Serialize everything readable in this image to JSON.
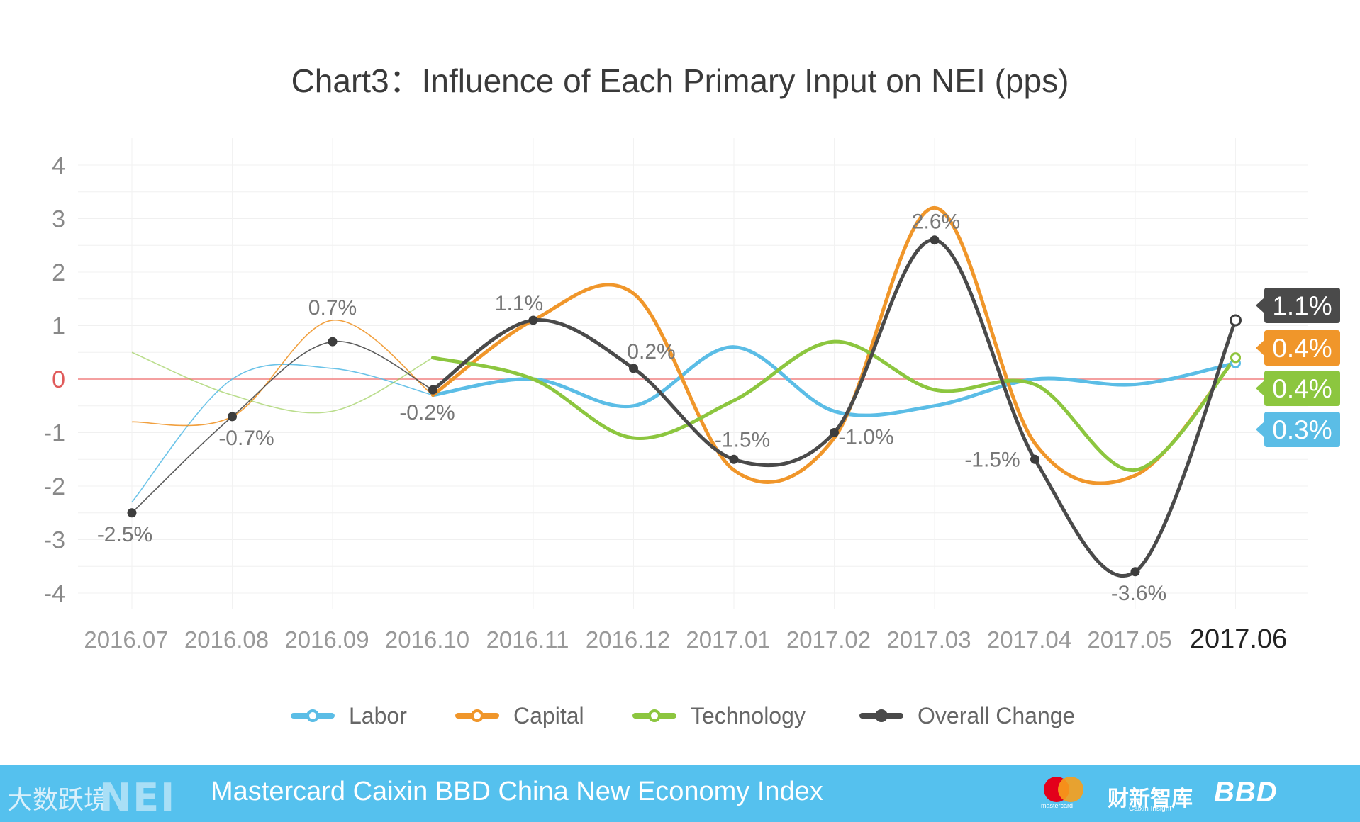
{
  "chart_data": {
    "type": "line",
    "title": "Chart3：Influence of Each Primary Input on NEI (pps)",
    "categories": [
      "2016.07",
      "2016.08",
      "2016.09",
      "2016.10",
      "2016.11",
      "2016.12",
      "2017.01",
      "2017.02",
      "2017.03",
      "2017.04",
      "2017.05",
      "2017.06"
    ],
    "ylim": [
      -4,
      4
    ],
    "yticks": [
      "4",
      "3",
      "2",
      "1",
      "0",
      "-1",
      "-2",
      "-3",
      "-4"
    ],
    "grid": true,
    "series": [
      {
        "name": "Labor",
        "color": "#5bbde6",
        "values": [
          -2.3,
          0.0,
          0.2,
          -0.3,
          0.0,
          -0.5,
          0.6,
          -0.6,
          -0.5,
          0.0,
          -0.1,
          0.3
        ],
        "end_label": "0.3%"
      },
      {
        "name": "Capital",
        "color": "#f0962a",
        "values": [
          -0.8,
          -0.7,
          1.1,
          -0.3,
          1.1,
          1.6,
          -1.7,
          -1.1,
          3.2,
          -1.2,
          -1.8,
          0.4
        ],
        "end_label": "0.4%"
      },
      {
        "name": "Technology",
        "color": "#8cc63f",
        "values": [
          0.5,
          -0.3,
          -0.6,
          0.4,
          0.0,
          -1.1,
          -0.4,
          0.7,
          -0.2,
          -0.1,
          -1.7,
          0.4
        ],
        "end_label": "0.4%"
      },
      {
        "name": "Overall Change",
        "color": "#4a4a4a",
        "values": [
          -2.5,
          -0.7,
          0.7,
          -0.2,
          1.1,
          0.2,
          -1.5,
          -1.0,
          2.6,
          -1.5,
          -3.6,
          1.1
        ],
        "end_label": "1.1%"
      }
    ],
    "data_labels": [
      "-2.5%",
      "-0.7%",
      "0.7%",
      "-0.2%",
      "1.1%",
      "0.2%",
      "-1.5%",
      "-1.0%",
      "2.6%",
      "-1.5%",
      "-3.6%"
    ]
  },
  "footer": {
    "text": "Mastercard Caixin BBD China New Economy Index",
    "brand": "NEI",
    "watermark": "大数跃境",
    "caixin": "财新智库",
    "caixin_sub": "Caixin Insight",
    "bbd": "BBD",
    "mastercard": "mastercard"
  }
}
